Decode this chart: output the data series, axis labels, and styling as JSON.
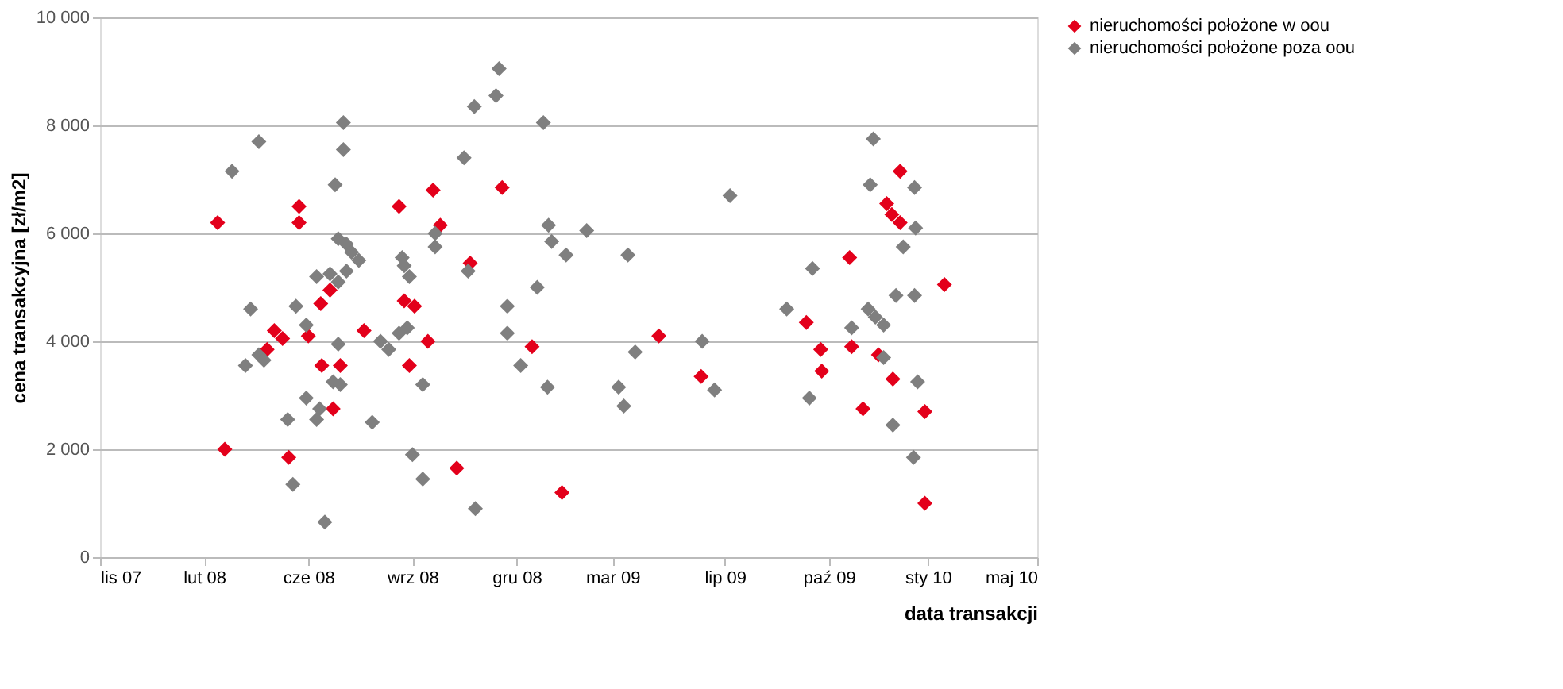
{
  "chart_data": {
    "type": "scatter",
    "xlabel": "data transakcji",
    "ylabel": "cena transakcyjna [zł/m2]",
    "xlim": [
      "2007-11-20",
      "2010-05-17"
    ],
    "xticks": [
      {
        "value": "2007-11-20",
        "label": "lis 07"
      },
      {
        "value": "2008-02-29",
        "label": "lut 08"
      },
      {
        "value": "2008-06-09",
        "label": "cze 08"
      },
      {
        "value": "2008-09-18",
        "label": "wrz 08"
      },
      {
        "value": "2008-12-28",
        "label": "gru 08"
      },
      {
        "value": "2009-03-31",
        "label": "mar 09"
      },
      {
        "value": "2009-07-18",
        "label": "lip 09"
      },
      {
        "value": "2009-10-27",
        "label": "paź 09"
      },
      {
        "value": "2010-01-31",
        "label": "sty 10"
      },
      {
        "value": "2010-05-17",
        "label": "maj 10"
      }
    ],
    "ylim": [
      0,
      10000
    ],
    "yticks": [
      0,
      {
        "value": 2000,
        "label": "2 000"
      },
      {
        "value": 4000,
        "label": "4 000"
      },
      {
        "value": 6000,
        "label": "6 000"
      },
      {
        "value": 8000,
        "label": "8 000"
      },
      {
        "value": 10000,
        "label": "10 000"
      }
    ],
    "grid": "y",
    "legend": "right",
    "marker": "diamond",
    "series": [
      {
        "name": "nieruchomości położone w oou",
        "color": "#e3001b",
        "x": [
          "2008-03-13",
          "2008-03-20",
          "2008-05-31",
          "2008-05-31",
          "2008-05-07",
          "2008-05-15",
          "2008-04-30",
          "2008-05-21",
          "2008-06-09",
          "2008-06-21",
          "2008-06-30",
          "2008-06-22",
          "2008-07-10",
          "2008-07-03",
          "2008-07-10",
          "2008-08-02",
          "2008-09-05",
          "2008-10-08",
          "2008-09-10",
          "2008-09-20",
          "2008-10-03",
          "2008-09-15",
          "2008-10-15",
          "2008-11-13",
          "2008-10-31",
          "2008-12-14",
          "2009-01-12",
          "2009-02-10",
          "2009-05-15",
          "2009-06-25",
          "2010-01-04",
          "2009-12-22",
          "2009-12-27",
          "2010-01-04",
          "2009-11-16",
          "2010-02-16",
          "2009-10-05",
          "2009-10-19",
          "2009-10-20",
          "2009-11-18",
          "2009-12-14",
          "2009-12-28",
          "2009-11-29",
          "2010-01-28",
          "2010-01-28"
        ],
        "values": [
          6200,
          2000,
          6500,
          6200,
          4200,
          4050,
          3850,
          1850,
          4100,
          4700,
          4950,
          3550,
          3550,
          2750,
          null,
          4200,
          6500,
          6800,
          4750,
          4650,
          4000,
          3550,
          6150,
          5450,
          1650,
          6850,
          3900,
          1200,
          4100,
          3350,
          7150,
          6550,
          6350,
          6200,
          5550,
          5050,
          4350,
          3850,
          3450,
          3900,
          3750,
          3300,
          2750,
          2700,
          1000
        ]
      },
      {
        "name": "nieruchomości położone poza oou",
        "color": "#7f7f7f",
        "x": [
          "2008-04-22",
          "2008-03-27",
          "2008-07-13",
          "2008-07-13",
          "2008-07-05",
          "2008-07-08",
          "2008-07-16",
          "2008-07-21",
          "2008-07-28",
          "2008-09-08",
          "2008-09-10",
          "2008-09-15",
          "2008-10-10",
          "2008-10-10",
          "2008-04-14",
          "2008-05-28",
          "2008-06-07",
          "2008-06-17",
          "2008-06-30",
          "2008-07-08",
          "2008-07-16",
          "2008-04-09",
          "2008-04-22",
          "2008-04-27",
          "2008-07-08",
          "2008-07-03",
          "2008-07-10",
          "2008-06-07",
          "2008-06-20",
          "2008-06-17",
          "2008-05-20",
          "2008-05-25",
          "2008-06-25",
          "2008-08-10",
          "2008-08-18",
          "2008-08-26",
          "2008-09-05",
          "2008-09-13",
          "2008-09-28",
          "2008-09-18",
          "2008-09-28",
          "2008-12-11",
          "2008-12-08",
          "2008-11-17",
          "2009-01-23",
          "2008-11-07",
          "2009-07-23",
          "2009-01-28",
          "2009-01-31",
          "2009-02-14",
          "2009-03-06",
          "2009-04-15",
          "2008-11-11",
          "2009-01-17",
          "2008-12-19",
          "2008-12-19",
          "2009-01-01",
          "2009-01-27",
          "2009-04-22",
          "2009-04-06",
          "2009-04-11",
          "2009-06-26",
          "2009-07-08",
          "2008-11-18",
          "2009-12-09",
          "2009-12-06",
          "2010-01-18",
          "2010-01-19",
          "2010-01-07",
          "2009-10-11",
          "2009-09-16",
          "2009-12-31",
          "2010-01-18",
          "2009-12-04",
          "2009-12-11",
          "2009-12-19",
          "2009-11-18",
          "2009-12-19",
          "2010-01-21",
          "2009-10-08",
          "2009-12-28",
          "2010-01-17"
        ],
        "values": [
          7700,
          7150,
          8050,
          7550,
          6900,
          5900,
          5800,
          5650,
          5500,
          5550,
          5400,
          5200,
          6000,
          5750,
          4600,
          4650,
          4300,
          5200,
          5250,
          5100,
          5300,
          3550,
          3750,
          3650,
          3950,
          3250,
          3200,
          2950,
          2750,
          2550,
          2550,
          1350,
          650,
          2500,
          4000,
          3850,
          4150,
          4250,
          3200,
          1900,
          1450,
          9050,
          8550,
          8350,
          8050,
          7400,
          6700,
          6150,
          5850,
          5600,
          6050,
          5600,
          5300,
          5000,
          4650,
          4150,
          3550,
          3150,
          3800,
          3150,
          2800,
          4000,
          3100,
          900,
          7750,
          6900,
          6850,
          6100,
          5750,
          5350,
          4600,
          4850,
          4850,
          4600,
          4450,
          4300,
          4250,
          3700,
          3250,
          2950,
          2450,
          1850
        ]
      }
    ]
  }
}
